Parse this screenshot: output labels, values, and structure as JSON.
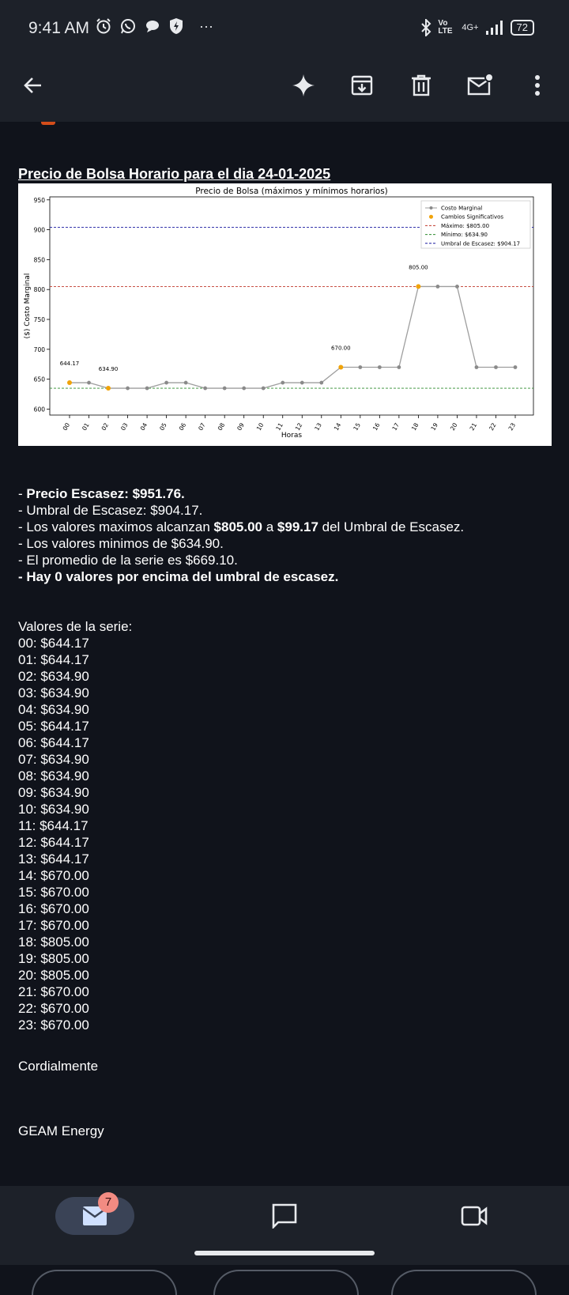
{
  "status_bar": {
    "time": "9:41 AM",
    "icons_left": [
      "alarm-icon",
      "whatsapp-icon",
      "chat-bubble-icon",
      "shield-bolt-icon"
    ],
    "more": "···",
    "network_volte": "Vo LTE",
    "network_type": "4G+",
    "battery": "72"
  },
  "toolbar": {
    "icons": [
      "back-arrow-icon",
      "sparkle-icon",
      "archive-icon",
      "delete-icon",
      "mark-unread-icon",
      "more-vert-icon"
    ]
  },
  "email": {
    "title": "Precio de Bolsa Horario para el dia 24-01-2025",
    "summary_lines": [
      {
        "bold": true,
        "parts": [
          {
            "text": "- ",
            "b": false
          },
          {
            "text": "Precio Escasez: $951.76.",
            "b": true
          }
        ]
      },
      {
        "parts": [
          {
            "text": "- Umbral de Escasez: $904.17.",
            "b": false
          }
        ]
      },
      {
        "parts": [
          {
            "text": "- Los valores maximos alcanzan ",
            "b": false
          },
          {
            "text": "$805.00",
            "b": true
          },
          {
            "text": " a ",
            "b": false
          },
          {
            "text": "$99.17",
            "b": true
          },
          {
            "text": " del Umbral de Escasez.",
            "b": false
          }
        ]
      },
      {
        "parts": [
          {
            "text": "- Los valores minimos de $634.90.",
            "b": false
          }
        ]
      },
      {
        "parts": [
          {
            "text": "- El promedio de la serie es $669.10.",
            "b": false
          }
        ]
      },
      {
        "parts": [
          {
            "text": "- Hay 0 valores por encima del umbral de escasez.",
            "b": true
          }
        ]
      }
    ],
    "series_title": "Valores de la serie:",
    "series_values": [
      "00: $644.17",
      "01: $644.17",
      "02: $634.90",
      "03: $634.90",
      "04: $634.90",
      "05: $644.17",
      "06: $644.17",
      "07: $634.90",
      "08: $634.90",
      "09: $634.90",
      "10: $634.90",
      "11: $644.17",
      "12: $644.17",
      "13: $644.17",
      "14: $670.00",
      "15: $670.00",
      "16: $670.00",
      "17: $670.00",
      "18: $805.00",
      "19: $805.00",
      "20: $805.00",
      "21: $670.00",
      "22: $670.00",
      "23: $670.00"
    ],
    "closing": "Cordialmente",
    "signature": "GEAM Energy"
  },
  "chart_data": {
    "type": "line",
    "title": "Precio de Bolsa (máximos y mínimos horarios)",
    "xlabel": "Horas",
    "ylabel": "($) Costo Marginal",
    "categories": [
      "00",
      "01",
      "02",
      "03",
      "04",
      "05",
      "06",
      "07",
      "08",
      "09",
      "10",
      "11",
      "12",
      "13",
      "14",
      "15",
      "16",
      "17",
      "18",
      "19",
      "20",
      "21",
      "22",
      "23"
    ],
    "series": [
      {
        "name": "Costo Marginal",
        "values": [
          644.17,
          644.17,
          634.9,
          634.9,
          634.9,
          644.17,
          644.17,
          634.9,
          634.9,
          634.9,
          634.9,
          644.17,
          644.17,
          644.17,
          670.0,
          670.0,
          670.0,
          670.0,
          805.0,
          805.0,
          805.0,
          670.0,
          670.0,
          670.0
        ],
        "color": "#9e9e9e"
      }
    ],
    "significant_changes": {
      "name": "Cambios Significativos",
      "color": "#f0a30a",
      "indices": [
        0,
        2,
        14,
        18
      ],
      "labels": [
        "644.17",
        "634.90",
        "670.00",
        "805.00"
      ]
    },
    "reference_lines": [
      {
        "name": "Máximo: $805.00",
        "value": 805.0,
        "color": "#c0392b"
      },
      {
        "name": "Mínimo: $634.90",
        "value": 634.9,
        "color": "#2e8b2e"
      },
      {
        "name": "Umbral de Escasez: $904.17",
        "value": 904.17,
        "color": "#1a1aa0"
      }
    ],
    "ylim": [
      590,
      955
    ],
    "yticks": [
      600,
      650,
      700,
      750,
      800,
      850,
      900,
      950
    ],
    "legend": "top-right",
    "grid": false
  },
  "bottom_nav": {
    "mail_badge": "7",
    "icons": [
      "mail-icon",
      "chat-icon",
      "video-icon"
    ]
  }
}
